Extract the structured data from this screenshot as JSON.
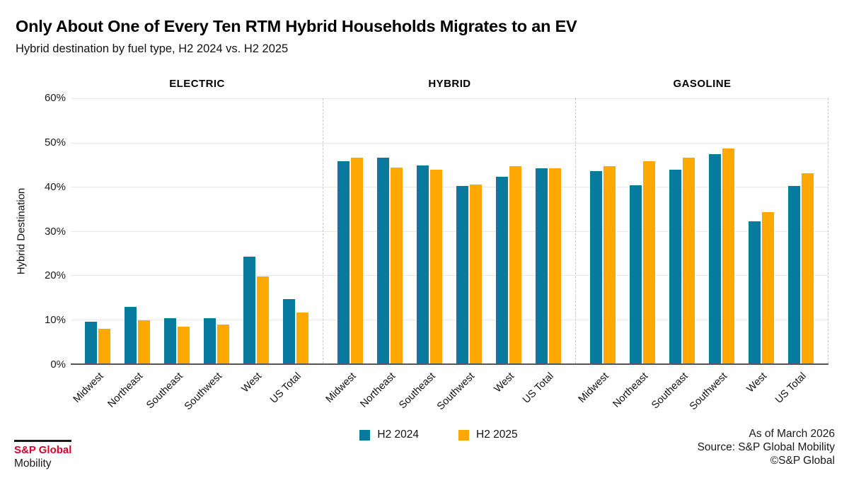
{
  "header": {
    "title": "Only About One of Every Ten RTM Hybrid Households Migrates to an EV",
    "subtitle": "Hybrid destination by fuel type, H2 2024 vs. H2 2025"
  },
  "colors": {
    "h2_2024": "#077a9e",
    "h2_2025": "#ffa802",
    "grid": "#e8e8e8",
    "axis": "#55565a",
    "separator": "#c9c9c9",
    "brand_red": "#d6002a",
    "text": "#111111"
  },
  "chart_data": {
    "type": "bar",
    "title": "Only About One of Every Ten RTM Hybrid Households Migrates to an EV",
    "subtitle": "Hybrid destination by fuel type, H2 2024 vs. H2 2025",
    "categories": [
      "Midwest",
      "Northeast",
      "Southeast",
      "Southwest",
      "West",
      "US Total"
    ],
    "ylabel": "Hybrid Destination",
    "xlabel": "",
    "ylim": [
      0,
      60
    ],
    "ytick_step": 10,
    "yticks": [
      "60%",
      "50%",
      "40%",
      "30%",
      "20%",
      "10%",
      "0%"
    ],
    "grid": "horizontal",
    "legend_position": "bottom",
    "legend": [
      "H2 2024",
      "H2 2025"
    ],
    "panels": [
      {
        "label": "ELECTRIC",
        "series": [
          {
            "name": "H2 2024",
            "values": [
              9.5,
              12.8,
              10.2,
              10.2,
              24.2,
              14.6
            ]
          },
          {
            "name": "H2 2025",
            "values": [
              7.9,
              9.8,
              8.4,
              8.8,
              19.7,
              11.6
            ]
          }
        ]
      },
      {
        "label": "HYBRID",
        "series": [
          {
            "name": "H2 2024",
            "values": [
              45.8,
              46.5,
              44.8,
              40.2,
              42.2,
              44.1
            ]
          },
          {
            "name": "H2 2025",
            "values": [
              46.5,
              44.3,
              43.9,
              40.5,
              44.7,
              44.1
            ]
          }
        ]
      },
      {
        "label": "GASOLINE",
        "series": [
          {
            "name": "H2 2024",
            "values": [
              43.5,
              40.4,
              43.9,
              47.4,
              32.1,
              40.2
            ]
          },
          {
            "name": "H2 2025",
            "values": [
              44.6,
              45.8,
              46.5,
              48.6,
              34.3,
              43.0
            ]
          }
        ]
      }
    ]
  },
  "footer": {
    "as_of": "As of March 2026",
    "source": "Source: S&P Global Mobility",
    "copyright": "©S&P Global",
    "logo_top": "S&P Global",
    "logo_bottom": "Mobility"
  }
}
